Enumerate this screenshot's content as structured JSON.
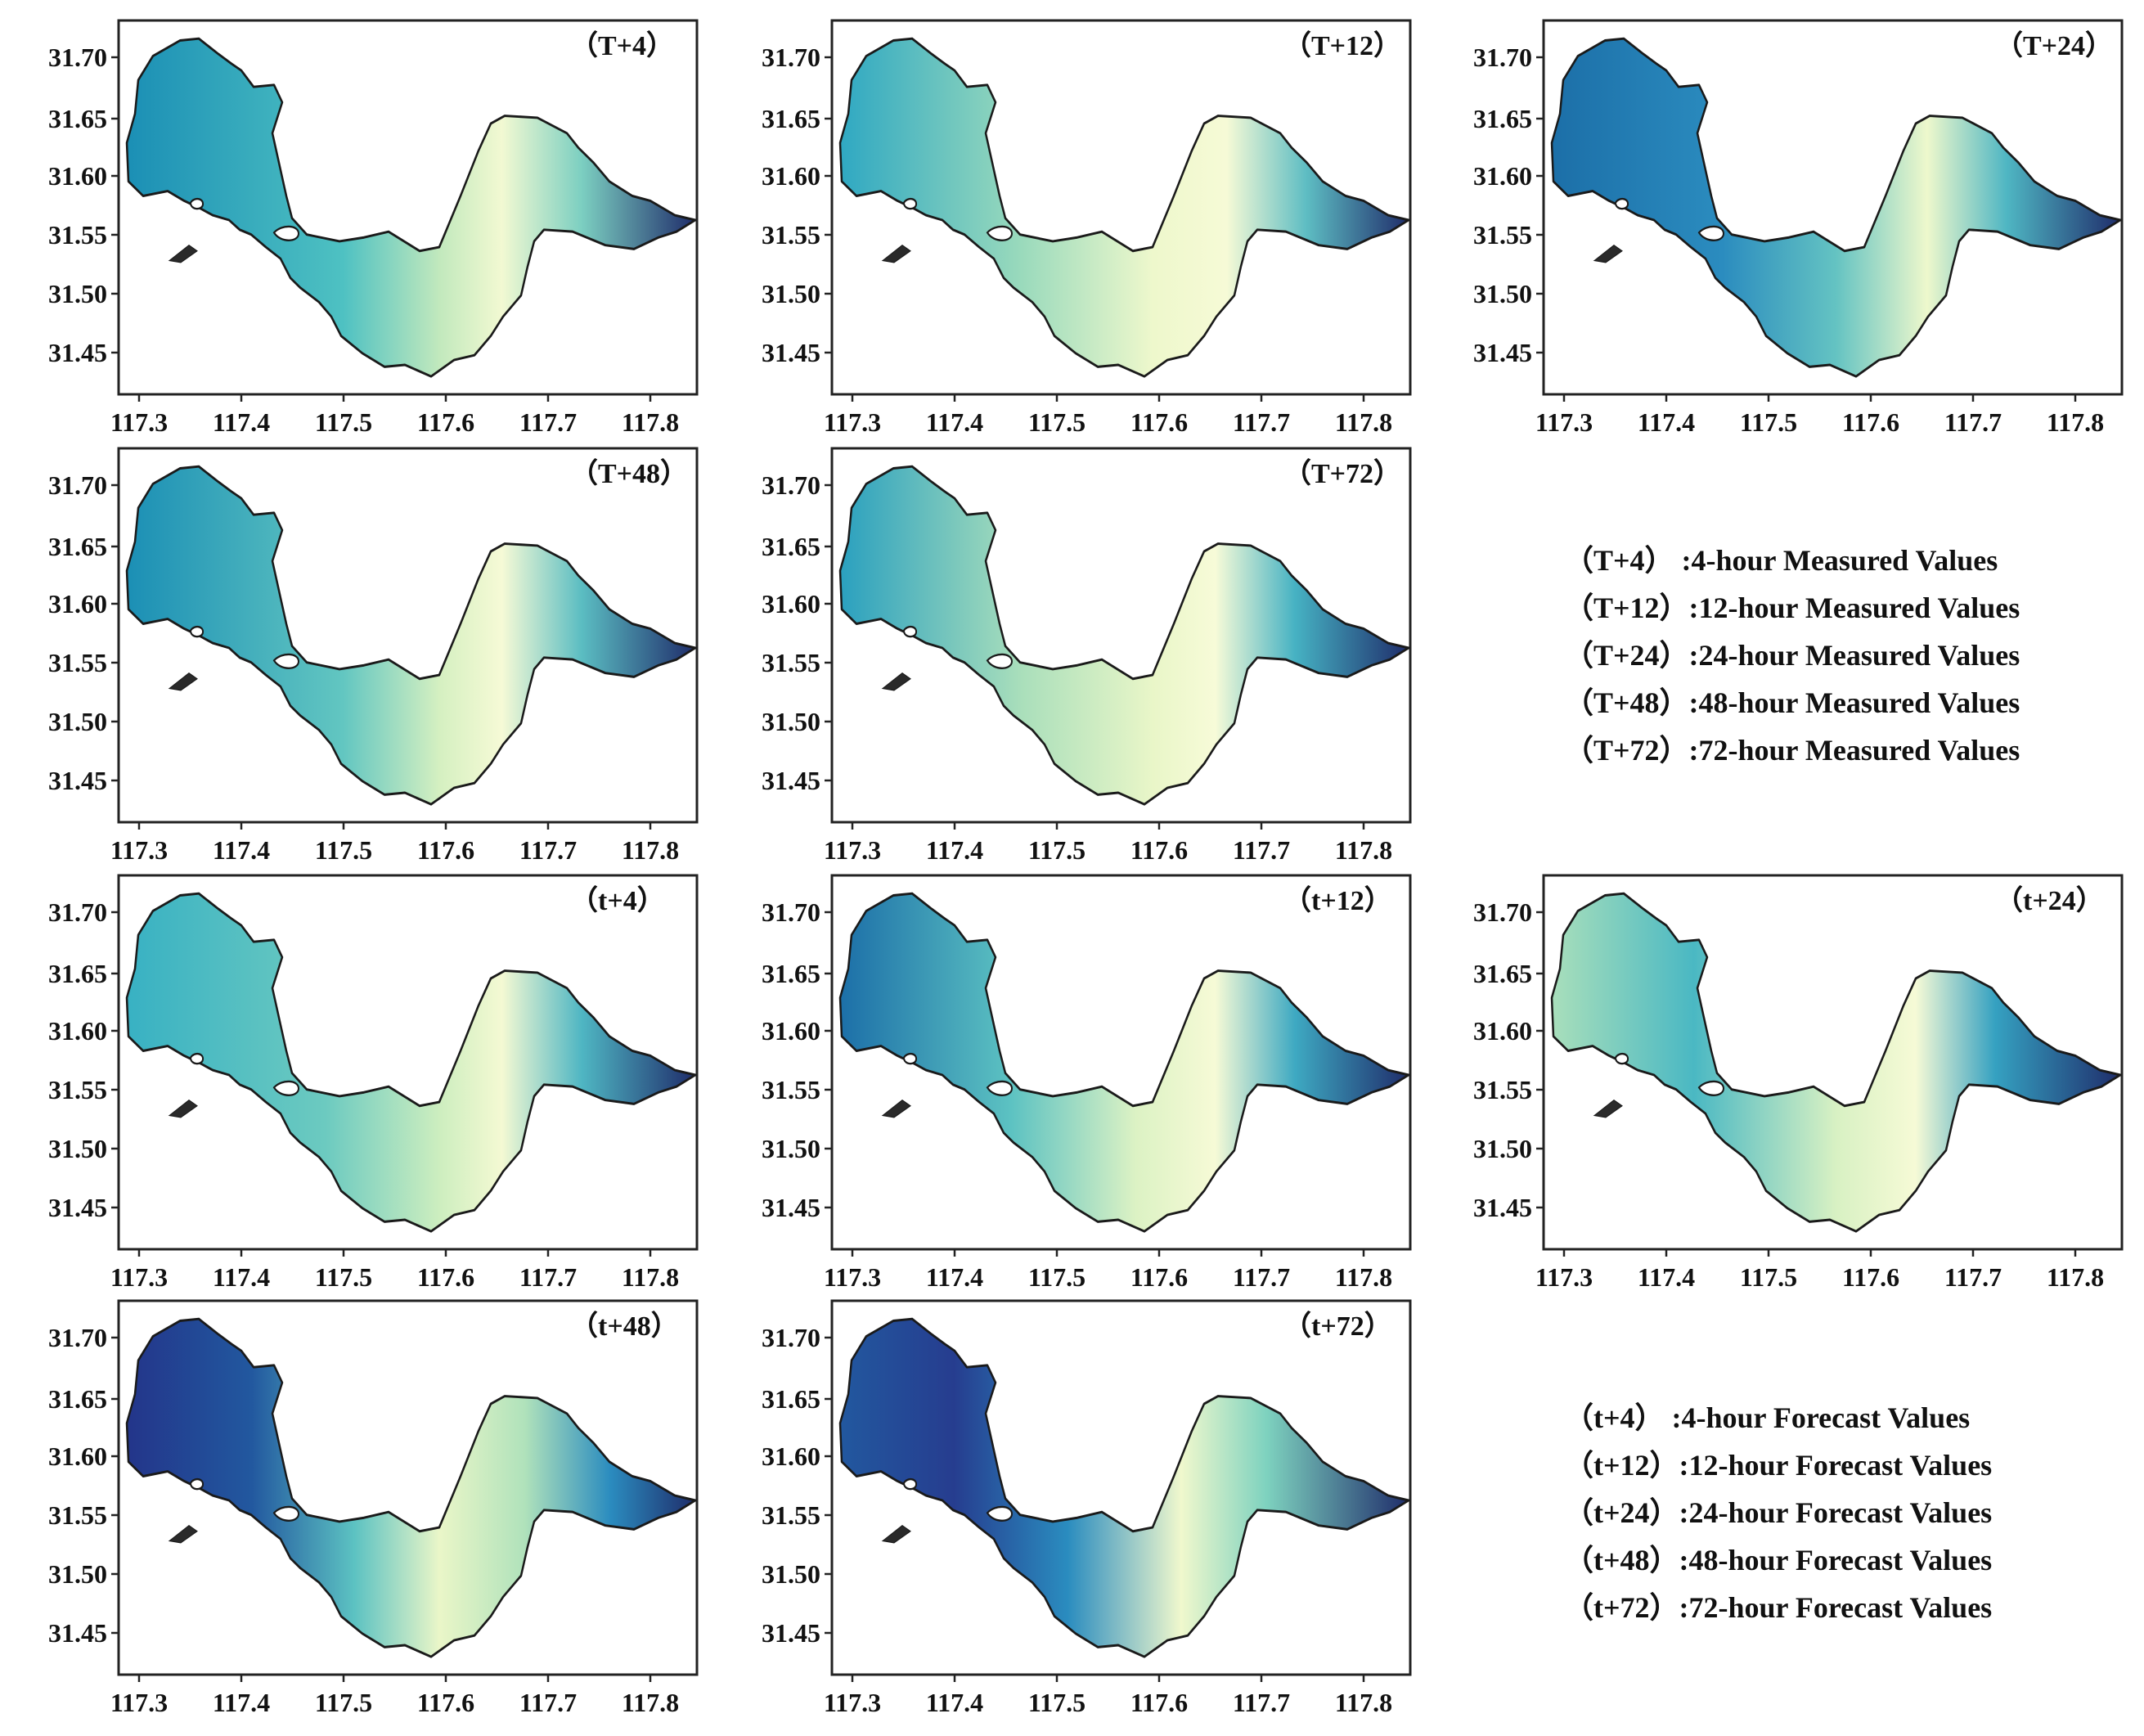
{
  "x_ticks": [
    "117.3",
    "117.4",
    "117.5",
    "117.6",
    "117.7",
    "117.8"
  ],
  "y_ticks": [
    "31.70",
    "31.65",
    "31.60",
    "31.55",
    "31.50",
    "31.45"
  ],
  "panels": [
    {
      "label": "（T+4）",
      "stops": [
        [
          0,
          "#1b8fb5"
        ],
        [
          0.38,
          "#4ec1c2"
        ],
        [
          0.55,
          "#c2e9bd"
        ],
        [
          0.66,
          "#f2f9d2"
        ],
        [
          0.8,
          "#7ccfc1"
        ],
        [
          1,
          "#1f2d6b"
        ]
      ]
    },
    {
      "label": "（T+12）",
      "stops": [
        [
          0,
          "#2fa8c2"
        ],
        [
          0.32,
          "#9adabc"
        ],
        [
          0.55,
          "#eef8cc"
        ],
        [
          0.68,
          "#f6fad6"
        ],
        [
          0.82,
          "#5ebdc3"
        ],
        [
          1,
          "#1f2d6b"
        ]
      ]
    },
    {
      "label": "（T+24）",
      "stops": [
        [
          0,
          "#1c6fa8"
        ],
        [
          0.3,
          "#2b8cbf"
        ],
        [
          0.5,
          "#64c3c2"
        ],
        [
          0.66,
          "#eef8cc"
        ],
        [
          0.8,
          "#4fb6c3"
        ],
        [
          1,
          "#1f2d6b"
        ]
      ]
    },
    {
      "label": "（T+48）",
      "stops": [
        [
          0,
          "#1b8fb5"
        ],
        [
          0.38,
          "#62c6c1"
        ],
        [
          0.55,
          "#d5f0c1"
        ],
        [
          0.66,
          "#f6fad6"
        ],
        [
          0.8,
          "#5bbdc2"
        ],
        [
          1,
          "#1f2d6b"
        ]
      ]
    },
    {
      "label": "（T+72）",
      "stops": [
        [
          0,
          "#2aa0bf"
        ],
        [
          0.32,
          "#aadfbb"
        ],
        [
          0.55,
          "#e9f6c8"
        ],
        [
          0.66,
          "#f7fbd8"
        ],
        [
          0.8,
          "#46b2c3"
        ],
        [
          1,
          "#1f2d6b"
        ]
      ]
    },
    {
      "label": "（t+4）",
      "stops": [
        [
          0,
          "#38b1c3"
        ],
        [
          0.35,
          "#6ccac0"
        ],
        [
          0.55,
          "#cdeebf"
        ],
        [
          0.66,
          "#f4f9d3"
        ],
        [
          0.8,
          "#4fb6c3"
        ],
        [
          1,
          "#1f2d6b"
        ]
      ]
    },
    {
      "label": "（t+12）",
      "stops": [
        [
          0,
          "#1c6fa8"
        ],
        [
          0.3,
          "#5cc2c2"
        ],
        [
          0.52,
          "#dcf2c4"
        ],
        [
          0.66,
          "#f6fad6"
        ],
        [
          0.8,
          "#3ea9c2"
        ],
        [
          1,
          "#1f2d6b"
        ]
      ]
    },
    {
      "label": "（t+24）",
      "stops": [
        [
          0,
          "#a9dfbb"
        ],
        [
          0.25,
          "#4ab8c3"
        ],
        [
          0.5,
          "#d8f1c3"
        ],
        [
          0.64,
          "#f6fad6"
        ],
        [
          0.78,
          "#35a1c1"
        ],
        [
          1,
          "#1f2d6b"
        ]
      ]
    },
    {
      "label": "（t+48）",
      "stops": [
        [
          0,
          "#23358a"
        ],
        [
          0.22,
          "#22589f"
        ],
        [
          0.4,
          "#5cc2c2"
        ],
        [
          0.55,
          "#eaf6c8"
        ],
        [
          0.7,
          "#b0e2bb"
        ],
        [
          0.85,
          "#2b8cbf"
        ],
        [
          1,
          "#1f2d6b"
        ]
      ]
    },
    {
      "label": "（t+72）",
      "stops": [
        [
          0,
          "#22589f"
        ],
        [
          0.2,
          "#263d8f"
        ],
        [
          0.4,
          "#2a8cbf"
        ],
        [
          0.6,
          "#f0f8cd"
        ],
        [
          0.75,
          "#7ed2bf"
        ],
        [
          1,
          "#1f2d6b"
        ]
      ]
    }
  ],
  "legend_measured": [
    "（T+4）  :4-hour Measured Values",
    "（T+12）:12-hour Measured Values",
    "（T+24）:24-hour Measured Values",
    "（T+48）:48-hour Measured Values",
    "（T+72）:72-hour Measured Values"
  ],
  "legend_forecast": [
    "（t+4）  :4-hour Forecast Values",
    "（t+12）:12-hour Forecast Values",
    "（t+24）:24-hour Forecast Values",
    "（t+48）:48-hour Forecast Values",
    "（t+72）:72-hour Forecast Values"
  ]
}
